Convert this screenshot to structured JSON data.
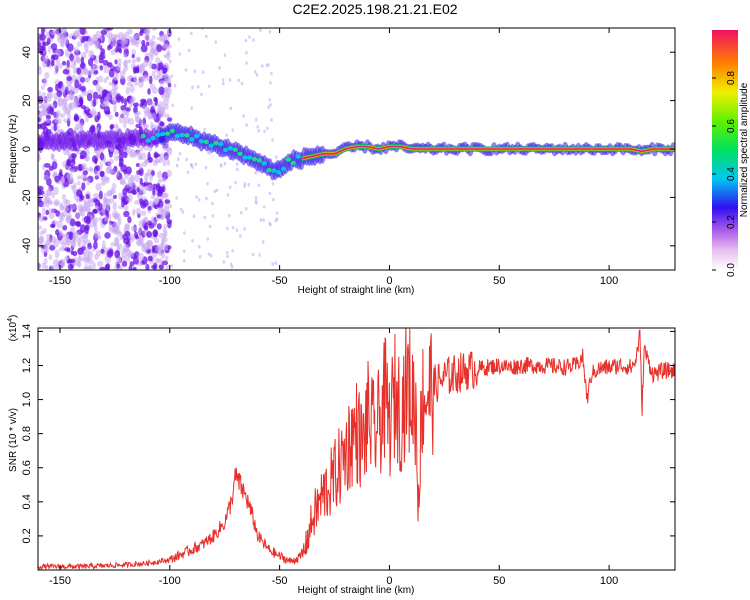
{
  "title": "C2E2.2025.198.21.21.E02",
  "colors": {
    "snr_line": "#e8302a",
    "track": "#e0206a",
    "noise_dark": "#6a10e8",
    "noise_light": "#c9a8f2"
  },
  "chart_data": [
    {
      "type": "heatmap",
      "title": "C2E2.2025.198.21.21.E02",
      "xlabel": "Height of straight line (km)",
      "ylabel": "Frequency (Hz)",
      "xlim": [
        -160,
        130
      ],
      "ylim": [
        -50,
        50
      ],
      "x_ticks": [
        -150,
        -100,
        -50,
        0,
        50,
        100
      ],
      "y_ticks": [
        -40,
        -20,
        0,
        20,
        40
      ],
      "colorbar": {
        "label": "Normalized spectral amplitude",
        "range": [
          0.0,
          1.0
        ],
        "ticks": [
          0.0,
          0.2,
          0.4,
          0.6,
          0.8
        ],
        "colormap": "rainbow"
      },
      "track": {
        "x": [
          -160,
          -120,
          -105,
          -100,
          -90,
          -80,
          -70,
          -60,
          -55,
          -50,
          -45,
          -40,
          -35,
          -30,
          -25,
          -20,
          -15,
          -10,
          -5,
          0,
          5,
          10,
          20,
          40,
          60,
          80,
          100,
          110,
          115,
          120,
          130
        ],
        "y": [
          3,
          4,
          5,
          7,
          5,
          2,
          -1,
          -5,
          -8,
          -9,
          -5,
          -4,
          -3,
          -2,
          -2,
          0,
          1,
          1,
          0,
          1,
          1,
          0,
          0,
          0,
          0,
          0,
          0,
          0,
          -1,
          0,
          0
        ]
      }
    },
    {
      "type": "line",
      "xlabel": "Height of straight line (km)",
      "ylabel": "SNR (10 * v/v)",
      "y_scale_label": "(x10",
      "y_scale_exp": "4",
      "xlim": [
        -160,
        130
      ],
      "ylim": [
        0,
        1.42
      ],
      "x_ticks": [
        -150,
        -100,
        -50,
        0,
        50,
        100
      ],
      "y_ticks": [
        0.2,
        0.4,
        0.6,
        0.8,
        1.0,
        1.2,
        1.4
      ],
      "series": [
        {
          "x": [
            -160,
            -140,
            -120,
            -110,
            -100,
            -95,
            -90,
            -85,
            -80,
            -75,
            -72,
            -70,
            -68,
            -65,
            -62,
            -60,
            -55,
            -50,
            -45,
            -40,
            -38,
            -35,
            -30,
            -27,
            -25,
            -22,
            -20,
            -17,
            -15,
            -12,
            -10,
            -7,
            -5,
            -2,
            0,
            3,
            5,
            8,
            10,
            12,
            13,
            15,
            20,
            25,
            30,
            35,
            40,
            45,
            50,
            55,
            60,
            70,
            80,
            85,
            88,
            90,
            92,
            95,
            100,
            105,
            110,
            112,
            114,
            115,
            116,
            118,
            120,
            125,
            130
          ],
          "y": [
            0.02,
            0.02,
            0.03,
            0.04,
            0.06,
            0.09,
            0.12,
            0.15,
            0.2,
            0.28,
            0.4,
            0.55,
            0.5,
            0.42,
            0.3,
            0.2,
            0.12,
            0.08,
            0.05,
            0.08,
            0.15,
            0.3,
            0.45,
            0.5,
            0.55,
            0.62,
            0.7,
            0.78,
            0.82,
            0.72,
            0.9,
            0.8,
            0.85,
            1.0,
            0.85,
            1.05,
            0.9,
            1.1,
            1.02,
            0.95,
            0.4,
            1.02,
            1.08,
            1.13,
            1.15,
            1.17,
            1.18,
            1.19,
            1.2,
            1.19,
            1.2,
            1.2,
            1.19,
            1.2,
            1.25,
            1.0,
            1.15,
            1.18,
            1.19,
            1.2,
            1.19,
            1.22,
            1.38,
            0.95,
            1.3,
            1.22,
            1.15,
            1.17,
            1.17
          ]
        }
      ]
    }
  ]
}
